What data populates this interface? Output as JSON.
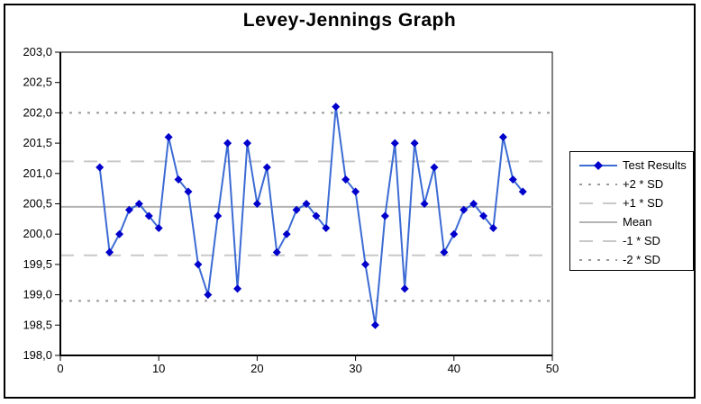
{
  "chart_data": {
    "type": "line",
    "title": "Levey-Jennings Graph",
    "xlabel": "",
    "ylabel": "",
    "xlim": [
      0,
      50
    ],
    "ylim": [
      198.0,
      203.0
    ],
    "grid": false,
    "legend_position": "right",
    "x_ticks": {
      "values": [
        0,
        10,
        20,
        30,
        40,
        50
      ],
      "labels": [
        "0",
        "10",
        "20",
        "30",
        "40",
        "50"
      ]
    },
    "y_ticks": {
      "values": [
        203.0,
        202.5,
        202.0,
        201.5,
        201.0,
        200.5,
        200.0,
        199.5,
        199.0,
        198.5,
        198.0
      ],
      "labels": [
        "203,0",
        "202,5",
        "202,0",
        "201,5",
        "201,0",
        "200,5",
        "200,0",
        "199,5",
        "199,0",
        "198,5",
        "198,0"
      ]
    },
    "x": [
      4,
      5,
      6,
      7,
      8,
      9,
      10,
      11,
      12,
      13,
      14,
      15,
      16,
      17,
      18,
      19,
      20,
      21,
      22,
      23,
      24,
      25,
      26,
      27,
      28,
      29,
      30,
      31,
      32,
      33,
      34,
      35,
      36,
      37,
      38,
      39,
      40,
      41,
      42,
      43,
      44,
      45,
      46,
      47
    ],
    "series": [
      {
        "name": "Test Results",
        "values": [
          201.1,
          199.7,
          200.0,
          200.4,
          200.5,
          200.3,
          200.1,
          201.6,
          200.9,
          200.7,
          199.5,
          199.0,
          200.3,
          201.5,
          199.1,
          201.5,
          200.5,
          201.1,
          199.7,
          200.0,
          200.4,
          200.5,
          200.3,
          200.1,
          202.1,
          200.9,
          200.7,
          199.5,
          198.5,
          200.3,
          201.5,
          199.1,
          201.5,
          200.5,
          201.1,
          199.7,
          200.0,
          200.4,
          200.5,
          200.3,
          200.1,
          201.6,
          200.9,
          200.7
        ]
      }
    ],
    "statistics": {
      "mean": 200.45,
      "sd": 0.775
    },
    "reference_lines": [
      {
        "id": "plus-2sd",
        "label": "+2 * SD",
        "value": 202.0,
        "style": "dotted",
        "color": "#999999"
      },
      {
        "id": "plus-1sd",
        "label": "+1 * SD",
        "value": 201.2,
        "style": "dashed",
        "color": "#C9C9C9"
      },
      {
        "id": "mean",
        "label": "Mean",
        "value": 200.45,
        "style": "solid",
        "color": "#B3B3B3"
      },
      {
        "id": "minus-1sd",
        "label": "-1 * SD",
        "value": 199.65,
        "style": "dashed",
        "color": "#C9C9C9"
      },
      {
        "id": "minus-2sd",
        "label": "-2 * SD",
        "value": 198.9,
        "style": "dotted",
        "color": "#999999"
      }
    ],
    "legend_items": [
      {
        "id": "test-results",
        "label": "Test Results",
        "style": "series"
      },
      {
        "id": "plus-2sd",
        "label": "+2 * SD",
        "style": "dotted"
      },
      {
        "id": "plus-1sd",
        "label": "+1 * SD",
        "style": "dashed"
      },
      {
        "id": "mean",
        "label": "Mean",
        "style": "solid"
      },
      {
        "id": "minus-1sd",
        "label": "-1 * SD",
        "style": "dashed"
      },
      {
        "id": "minus-2sd",
        "label": "-2 * SD",
        "style": "dotted"
      }
    ],
    "colors": {
      "series_line": "#3C6BD4",
      "marker": "#0000CC",
      "dotted_sd": "#999999",
      "dashed_sd": "#C9C9C9",
      "mean_line": "#B3B3B3",
      "axis": "#000000",
      "background": "#FFFFFF"
    }
  }
}
